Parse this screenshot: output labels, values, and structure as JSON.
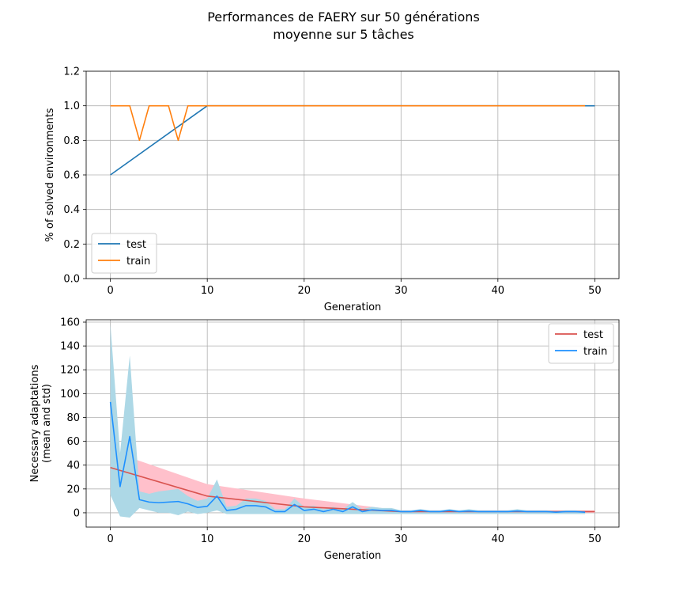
{
  "figure": {
    "title_line1": "Performances de FAERY sur 50 générations",
    "title_line2": "moyenne sur 5 tâches"
  },
  "chart_data": [
    {
      "type": "line",
      "xlabel": "Generation",
      "ylabel": "% of solved environments",
      "xlim": [
        -2.5,
        52.5
      ],
      "ylim": [
        0,
        1.2
      ],
      "xticks": [
        0,
        10,
        20,
        30,
        40,
        50
      ],
      "yticks": [
        0.0,
        0.2,
        0.4,
        0.6,
        0.8,
        1.0,
        1.2
      ],
      "ytick_labels": [
        "0.0",
        "0.2",
        "0.4",
        "0.6",
        "0.8",
        "1.0",
        "1.2"
      ],
      "grid": true,
      "legend": "lower-left",
      "series": [
        {
          "name": "test",
          "color": "#1f77b4",
          "x": [
            0,
            10,
            20,
            30,
            40,
            50
          ],
          "y": [
            0.6,
            1.0,
            1.0,
            1.0,
            1.0,
            1.0
          ]
        },
        {
          "name": "train",
          "color": "#ff7f0e",
          "x": [
            0,
            1,
            2,
            3,
            4,
            5,
            6,
            7,
            8,
            9,
            10,
            11,
            12,
            13,
            14,
            15,
            16,
            17,
            18,
            19,
            20,
            21,
            22,
            23,
            24,
            25,
            26,
            27,
            28,
            29,
            30,
            31,
            32,
            33,
            34,
            35,
            36,
            37,
            38,
            39,
            40,
            41,
            42,
            43,
            44,
            45,
            46,
            47,
            48,
            49
          ],
          "y": [
            1.0,
            1.0,
            1.0,
            0.8,
            1.0,
            1.0,
            1.0,
            0.8,
            1.0,
            1.0,
            1.0,
            1.0,
            1.0,
            1.0,
            1.0,
            1.0,
            1.0,
            1.0,
            1.0,
            1.0,
            1.0,
            1.0,
            1.0,
            1.0,
            1.0,
            1.0,
            1.0,
            1.0,
            1.0,
            1.0,
            1.0,
            1.0,
            1.0,
            1.0,
            1.0,
            1.0,
            1.0,
            1.0,
            1.0,
            1.0,
            1.0,
            1.0,
            1.0,
            1.0,
            1.0,
            1.0,
            1.0,
            1.0,
            1.0,
            1.0
          ]
        }
      ]
    },
    {
      "type": "line",
      "xlabel": "Generation",
      "ylabel": "Necessary adaptations",
      "ylabel2": "(mean and std)",
      "xlim": [
        -2.5,
        52.5
      ],
      "ylim": [
        -12,
        162
      ],
      "xticks": [
        0,
        10,
        20,
        30,
        40,
        50
      ],
      "yticks": [
        0,
        20,
        40,
        60,
        80,
        100,
        120,
        140,
        160
      ],
      "ytick_labels": [
        "0",
        "20",
        "40",
        "60",
        "80",
        "100",
        "120",
        "140",
        "160"
      ],
      "grid": true,
      "legend": "upper-right",
      "series": [
        {
          "name": "test",
          "color": "#d9534f",
          "band_color": "#ffc0cb",
          "x": [
            0,
            10,
            20,
            30,
            40,
            50
          ],
          "y": [
            38,
            14,
            5,
            1,
            1,
            1
          ],
          "lower": [
            16,
            4,
            0,
            0,
            0,
            0
          ],
          "upper": [
            52,
            24,
            12,
            2,
            2,
            2
          ]
        },
        {
          "name": "train",
          "color": "#1e90ff",
          "band_color": "#add8e6",
          "x": [
            0,
            1,
            2,
            3,
            4,
            5,
            6,
            7,
            8,
            9,
            10,
            11,
            12,
            13,
            14,
            15,
            16,
            17,
            18,
            19,
            20,
            21,
            22,
            23,
            24,
            25,
            26,
            27,
            28,
            29,
            30,
            31,
            32,
            33,
            34,
            35,
            36,
            37,
            38,
            39,
            40,
            41,
            42,
            43,
            44,
            45,
            46,
            47,
            48,
            49
          ],
          "y": [
            93,
            22,
            64,
            11,
            9,
            8.5,
            9,
            9.5,
            7.5,
            4.5,
            5.5,
            14,
            2,
            3,
            6,
            6,
            5,
            1,
            1,
            7,
            2,
            3,
            1,
            3,
            1,
            5,
            1,
            2.5,
            2,
            2,
            1,
            1,
            2,
            1,
            1,
            2,
            1,
            1.5,
            1,
            1,
            1,
            1,
            1.5,
            1,
            1,
            1,
            0.5,
            1,
            1,
            0.5
          ],
          "lower": [
            15,
            -3,
            -4,
            4,
            2,
            0,
            0,
            -2,
            1,
            -1,
            0,
            2,
            -1,
            -1,
            -1,
            -1,
            -1,
            -1,
            -1,
            -1,
            -1,
            -1,
            -1,
            -1,
            -1,
            -1,
            -1,
            -1,
            -1,
            -1,
            -1,
            -1,
            -1,
            -1,
            -1,
            -1,
            -1,
            -1,
            -1,
            -1,
            -1,
            -1,
            -1,
            -1,
            -1,
            -1,
            -1,
            -1,
            -1,
            -1
          ],
          "upper": [
            158,
            50,
            132,
            18,
            16,
            18,
            19,
            20,
            14,
            10,
            12,
            28,
            5,
            6,
            12,
            12,
            10,
            3,
            3,
            12,
            5,
            6,
            3,
            5,
            3,
            9,
            3,
            5,
            4,
            4,
            2,
            2,
            3,
            2,
            2,
            3,
            2,
            3,
            2,
            2,
            2,
            2,
            3,
            2,
            2,
            2,
            1.5,
            2,
            2,
            1.5
          ]
        }
      ]
    }
  ]
}
